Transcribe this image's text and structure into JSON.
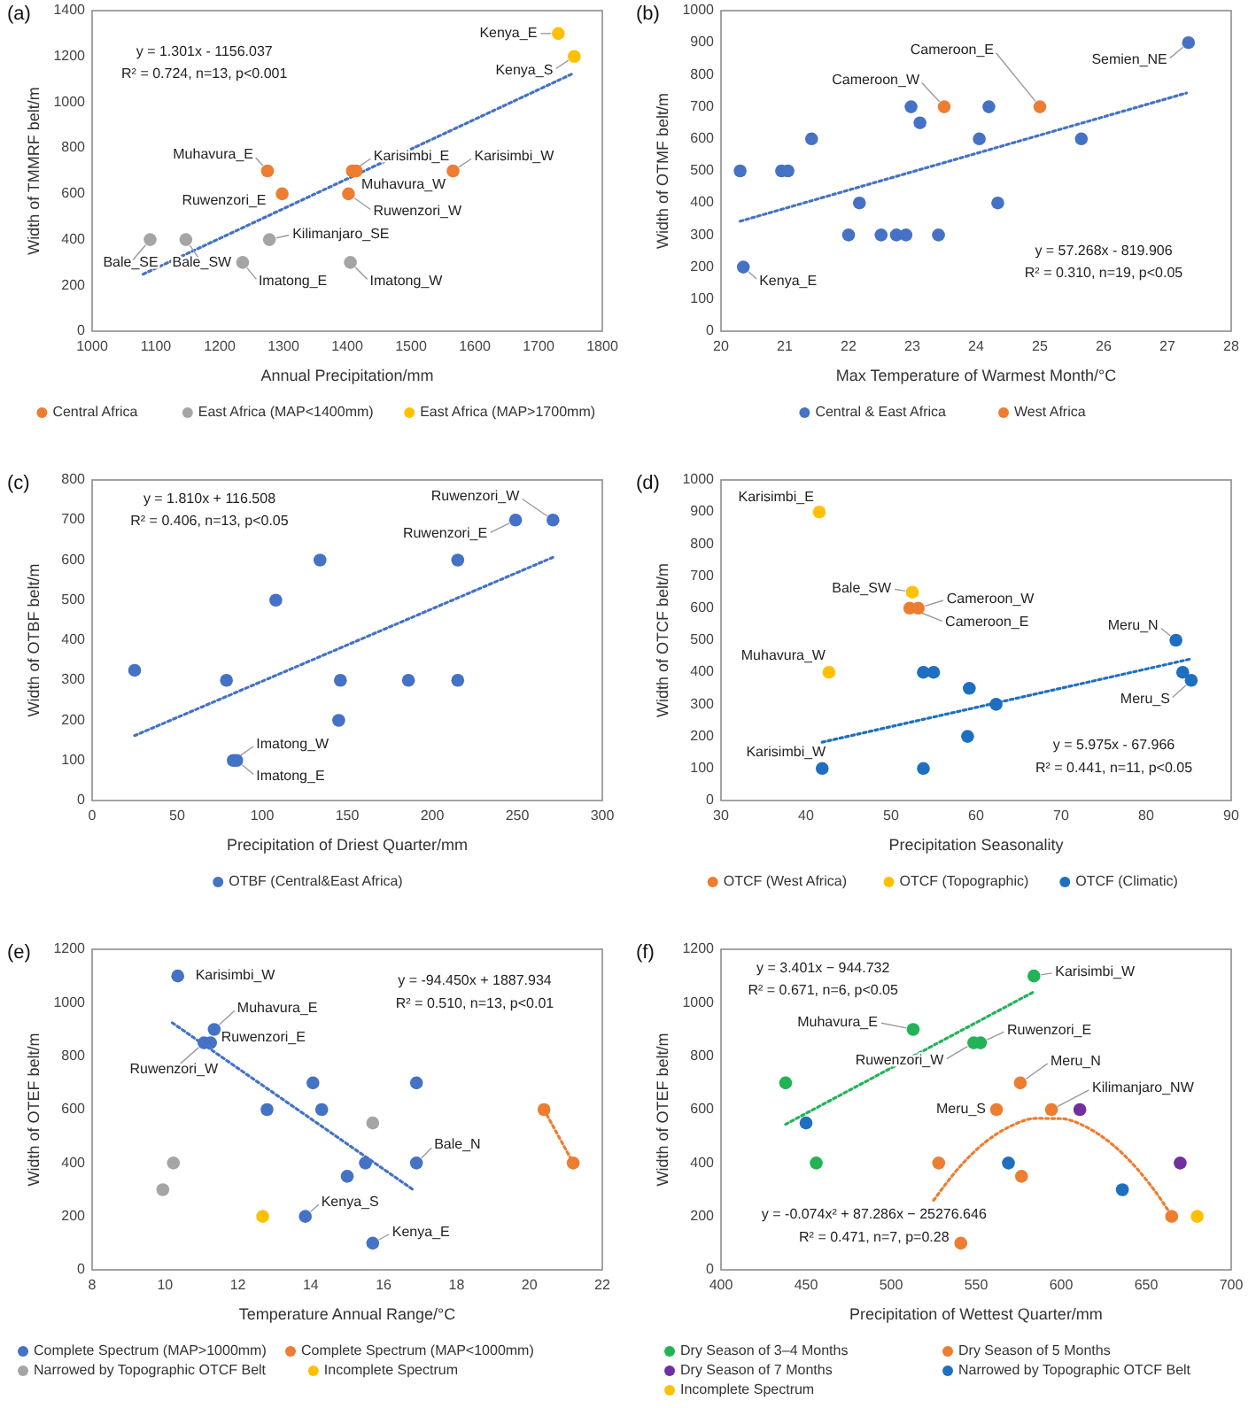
{
  "chart_data": [
    {
      "type": "scatter",
      "title": "(a)",
      "xlabel": "Annual Precipitation/mm",
      "ylabel": "Width of TMMRF belt/m",
      "xlim": [
        1000,
        1800
      ],
      "xticks": [
        1000,
        1100,
        1200,
        1300,
        1400,
        1500,
        1600,
        1700,
        1800
      ],
      "ylim": [
        0,
        1400
      ],
      "yticks": [
        0,
        200,
        400,
        600,
        800,
        1000,
        1200,
        1400
      ],
      "legend": "bottom",
      "marker": "circle",
      "series": [
        {
          "name": "Central Africa",
          "color": "#ed7d31",
          "x": [
            1275,
            1298,
            1408,
            1414,
            1402,
            1566
          ],
          "values": [
            700,
            600,
            700,
            700,
            600,
            700
          ]
        },
        {
          "name": "East Africa (MAP<1400mm)",
          "color": "#a5a5a5",
          "x": [
            1091,
            1147,
            1278,
            1236,
            1405
          ],
          "values": [
            400,
            400,
            400,
            300,
            300
          ]
        },
        {
          "name": "East Africa (MAP>1700mm)",
          "color": "#ffc000",
          "x": [
            1731,
            1756
          ],
          "values": [
            1300,
            1200
          ]
        },
        {
          "type": "line",
          "color": "#4472c4",
          "line_style": "dotted",
          "marker": "none",
          "x": [
            1080,
            1756
          ],
          "values": [
            249,
            1128
          ]
        }
      ],
      "annotations": [
        "y = 1.301x - 1156.037",
        "R² = 0.724, n=13, p<0.001",
        {
          "text": "Kenya_E",
          "x": 1731,
          "y": 1300
        },
        {
          "text": "Kenya_S",
          "x": 1756,
          "y": 1200
        },
        {
          "text": "Muhavura_E",
          "x": 1275,
          "y": 700
        },
        {
          "text": "Ruwenzori_E",
          "x": 1298,
          "y": 600
        },
        {
          "text": "Karisimbi_E",
          "x": 1408,
          "y": 700
        },
        {
          "text": "Muhavura_W",
          "x": 1414,
          "y": 700
        },
        {
          "text": "Ruwenzori_W",
          "x": 1402,
          "y": 600
        },
        {
          "text": "Karisimbi_W",
          "x": 1566,
          "y": 700
        },
        {
          "text": "Kilimanjaro_SE",
          "x": 1278,
          "y": 400
        },
        {
          "text": "Bale_SE",
          "x": 1091,
          "y": 400
        },
        {
          "text": "Bale_SW",
          "x": 1147,
          "y": 400
        },
        {
          "text": "Imatong_E",
          "x": 1236,
          "y": 300
        },
        {
          "text": "Imatong_W",
          "x": 1405,
          "y": 300
        }
      ]
    },
    {
      "type": "scatter",
      "title": "(b)",
      "xlabel": "Max Temperature of Warmest Month/°C",
      "ylabel": "Width of OTMF belt/m",
      "xlim": [
        20,
        28
      ],
      "xticks": [
        20,
        21,
        22,
        23,
        24,
        25,
        26,
        27,
        28
      ],
      "ylim": [
        0,
        1000
      ],
      "yticks": [
        0,
        100,
        200,
        300,
        400,
        500,
        600,
        700,
        800,
        900,
        1000
      ],
      "legend": "bottom",
      "marker": "circle",
      "series": [
        {
          "name": "Central & East Africa",
          "color": "#4472c4",
          "x": [
            20.3,
            20.35,
            20.95,
            21.05,
            21.42,
            22.0,
            22.17,
            22.51,
            22.75,
            22.9,
            22.98,
            23.12,
            23.41,
            24.05,
            24.2,
            24.34,
            25.65,
            27.33
          ],
          "values": [
            500,
            200,
            500,
            500,
            600,
            300,
            400,
            300,
            300,
            300,
            700,
            650,
            300,
            600,
            700,
            400,
            600,
            900
          ]
        },
        {
          "name": "West Africa",
          "color": "#ed7d31",
          "x": [
            23.5,
            25.0
          ],
          "values": [
            700,
            700
          ]
        },
        {
          "type": "line",
          "color": "#4472c4",
          "line_style": "dotted",
          "marker": "none",
          "x": [
            20.3,
            27.3
          ],
          "values": [
            343,
            743
          ]
        }
      ],
      "annotations": [
        "y = 57.268x - 819.906",
        "R² = 0.310, n=19, p<0.05",
        {
          "text": "Kenya_E",
          "x": 20.35,
          "y": 200
        },
        {
          "text": "Cameroon_W",
          "x": 23.5,
          "y": 700
        },
        {
          "text": "Cameroon_E",
          "x": 25.0,
          "y": 700
        },
        {
          "text": "Semien_NE",
          "x": 27.33,
          "y": 900
        }
      ]
    },
    {
      "type": "scatter",
      "title": "(c)",
      "xlabel": "Precipitation of Driest Quarter/mm",
      "ylabel": "Width of OTBF belt/m",
      "xlim": [
        0,
        300
      ],
      "xticks": [
        0,
        50,
        100,
        150,
        200,
        250,
        300
      ],
      "ylim": [
        0,
        800
      ],
      "yticks": [
        0,
        100,
        200,
        300,
        400,
        500,
        600,
        700,
        800
      ],
      "legend": "bottom",
      "marker": "circle",
      "series": [
        {
          "name": "OTBF (Central&East Africa)",
          "color": "#4472c4",
          "x": [
            25,
            79,
            83,
            85,
            108,
            134,
            145,
            146,
            186,
            215,
            215,
            249,
            271
          ],
          "values": [
            325,
            300,
            100,
            100,
            500,
            600,
            200,
            300,
            300,
            300,
            600,
            700,
            700
          ]
        },
        {
          "type": "line",
          "color": "#4472c4",
          "line_style": "dotted",
          "marker": "none",
          "x": [
            25,
            271
          ],
          "values": [
            162,
            607
          ]
        }
      ],
      "annotations": [
        "y = 1.810x + 116.508",
        "R² = 0.406, n=13, p<0.05",
        {
          "text": "Imatong_W",
          "x": 83,
          "y": 100
        },
        {
          "text": "Imatong_E",
          "x": 85,
          "y": 100
        },
        {
          "text": "Ruwenzori_E",
          "x": 249,
          "y": 700
        },
        {
          "text": "Ruwenzori_W",
          "x": 271,
          "y": 700
        }
      ]
    },
    {
      "type": "scatter",
      "title": "(d)",
      "xlabel": "Precipitation Seasonality",
      "ylabel": "Width of OTCF belt/m",
      "xlim": [
        30,
        90
      ],
      "xticks": [
        30,
        40,
        50,
        60,
        70,
        80,
        90
      ],
      "ylim": [
        0,
        1000
      ],
      "yticks": [
        0,
        100,
        200,
        300,
        400,
        500,
        600,
        700,
        800,
        900,
        1000
      ],
      "legend": "bottom",
      "marker": "circle",
      "series": [
        {
          "name": "OTCF (West Africa)",
          "color": "#ed7d31",
          "x": [
            52.2,
            53.2
          ],
          "values": [
            600,
            600
          ]
        },
        {
          "name": "OTCF (Topographic)",
          "color": "#ffc000",
          "x": [
            41.55,
            52.5,
            42.7
          ],
          "values": [
            900,
            650,
            400
          ]
        },
        {
          "name": "OTCF (Climatic)",
          "color": "#1f6fc0",
          "x": [
            41.9,
            53.8,
            55.0,
            53.8,
            59.2,
            59.0,
            62.35,
            83.5,
            84.3,
            85.3
          ],
          "values": [
            100,
            400,
            400,
            100,
            350,
            200,
            300,
            500,
            400,
            375
          ]
        },
        {
          "type": "line",
          "color": "#1f6fc0",
          "line_style": "dotted",
          "marker": "none",
          "x": [
            41.9,
            85.3
          ],
          "values": [
            182,
            442
          ]
        }
      ],
      "annotations": [
        "y = 5.975x - 67.966",
        "R² = 0.441, n=11, p<0.05",
        {
          "text": "Karisimbi_E",
          "x": 41.55,
          "y": 900
        },
        {
          "text": "Bale_SW",
          "x": 52.5,
          "y": 650
        },
        {
          "text": "Cameroon_W",
          "x": 53.2,
          "y": 600
        },
        {
          "text": "Cameroon_E",
          "x": 52.2,
          "y": 600
        },
        {
          "text": "Muhavura_W",
          "x": 42.7,
          "y": 400
        },
        {
          "text": "Karisimbi_W",
          "x": 41.9,
          "y": 100
        },
        {
          "text": "Meru_N",
          "x": 83.5,
          "y": 500
        },
        {
          "text": "Meru_S",
          "x": 85.3,
          "y": 375
        }
      ]
    },
    {
      "type": "scatter",
      "title": "(e)",
      "xlabel": "Temperature Annual Range/°C",
      "ylabel": "Width of OTEF belt/m",
      "xlim": [
        8,
        22
      ],
      "xticks": [
        8,
        10,
        12,
        14,
        16,
        18,
        20,
        22
      ],
      "ylim": [
        0,
        1200
      ],
      "yticks": [
        0,
        200,
        400,
        600,
        800,
        1000,
        1200
      ],
      "legend": "bottom",
      "marker": "circle",
      "series": [
        {
          "name": "Complete Spectrum (MAP>1000mm)",
          "color": "#4472c4",
          "x": [
            10.35,
            11.35,
            11.07,
            11.25,
            12.8,
            14.06,
            14.3,
            15.0,
            15.5,
            16.9,
            16.9,
            13.85,
            15.7
          ],
          "values": [
            1100,
            900,
            850,
            850,
            600,
            700,
            600,
            350,
            400,
            700,
            400,
            200,
            100
          ]
        },
        {
          "name": "Complete Spectrum (MAP<1000mm)",
          "color": "#ed7d31",
          "x": [
            20.4,
            21.2
          ],
          "values": [
            600,
            400
          ]
        },
        {
          "name": "Narrowed by Topographic OTCF Belt",
          "color": "#a5a5a5",
          "x": [
            9.94,
            10.23,
            15.7
          ],
          "values": [
            300,
            400,
            550
          ]
        },
        {
          "name": "Incomplete Spectrum",
          "color": "#ffc000",
          "x": [
            12.68
          ],
          "values": [
            200
          ]
        },
        {
          "type": "line",
          "color": "#4472c4",
          "line_style": "dotted",
          "marker": "none",
          "x": [
            10.2,
            16.8
          ],
          "values": [
            925,
            301
          ]
        },
        {
          "type": "line",
          "color": "#ed7d31",
          "line_style": "dotted",
          "marker": "none",
          "x": [
            20.4,
            21.2
          ],
          "values": [
            600,
            400
          ]
        }
      ],
      "annotations": [
        "y = -94.450x + 1887.934",
        "R² = 0.510, n=13, p<0.01",
        {
          "text": "Karisimbi_W",
          "x": 10.35,
          "y": 1100
        },
        {
          "text": "Muhavura_E",
          "x": 11.35,
          "y": 900
        },
        {
          "text": "Ruwenzori_E",
          "x": 11.25,
          "y": 850
        },
        {
          "text": "Ruwenzori_W",
          "x": 11.07,
          "y": 850
        },
        {
          "text": "Bale_N",
          "x": 16.9,
          "y": 400
        },
        {
          "text": "Kenya_S",
          "x": 13.85,
          "y": 200
        },
        {
          "text": "Kenya_E",
          "x": 15.7,
          "y": 100
        }
      ]
    },
    {
      "type": "scatter",
      "title": "(f)",
      "xlabel": "Precipitation of Wettest Quarter/mm",
      "ylabel": "Width of OTEF belt/m",
      "xlim": [
        400,
        700
      ],
      "xticks": [
        400,
        450,
        500,
        550,
        600,
        650,
        700
      ],
      "ylim": [
        0,
        1200
      ],
      "yticks": [
        0,
        200,
        400,
        600,
        800,
        1000,
        1200
      ],
      "legend": "bottom",
      "marker": "circle",
      "series": [
        {
          "name": "Dry Season of 3–4 Months",
          "color": "#22b357",
          "x": [
            584,
            513,
            548.6,
            552.6,
            438,
            456
          ],
          "values": [
            1100,
            900,
            850,
            850,
            700,
            400
          ]
        },
        {
          "name": "Dry Season of 5 Months",
          "color": "#ed7d31",
          "x": [
            576,
            562,
            594.3,
            528,
            576.7,
            541,
            665
          ],
          "values": [
            700,
            600,
            600,
            400,
            350,
            100,
            200
          ]
        },
        {
          "name": "Dry Season of 7 Months",
          "color": "#7030a0",
          "x": [
            611,
            670
          ],
          "values": [
            600,
            400
          ]
        },
        {
          "name": "Narrowed by Topographic OTCF Belt",
          "color": "#1f6fc0",
          "x": [
            450,
            569,
            636
          ],
          "values": [
            550,
            400,
            300
          ]
        },
        {
          "name": "Incomplete Spectrum",
          "color": "#ffc000",
          "x": [
            680
          ],
          "values": [
            200
          ]
        },
        {
          "type": "line",
          "color": "#22b357",
          "line_style": "dotted",
          "marker": "none",
          "x": [
            438,
            584
          ],
          "values": [
            545,
            1041
          ]
        },
        {
          "type": "line",
          "color": "#ed7d31",
          "line_style": "dotted",
          "marker": "none",
          "x": [
            525,
            540,
            555,
            570,
            585,
            600,
            615,
            630,
            645,
            660,
            665
          ],
          "values": [
            260,
            383,
            476,
            537,
            567,
            566,
            534,
            470,
            376,
            251,
            202
          ]
        }
      ],
      "annotations": [
        "y = 3.401x − 944.732",
        "R² = 0.671, n=6, p<0.05",
        "y = -0.074x² + 87.286x − 25276.646",
        "R² = 0.471, n=7, p=0.28",
        {
          "text": "Karisimbi_W",
          "x": 584,
          "y": 1100
        },
        {
          "text": "Muhavura_E",
          "x": 513,
          "y": 900
        },
        {
          "text": "Ruwenzori_E",
          "x": 552.6,
          "y": 850
        },
        {
          "text": "Ruwenzori_W",
          "x": 548.6,
          "y": 850
        },
        {
          "text": "Meru_N",
          "x": 576,
          "y": 700
        },
        {
          "text": "Meru_S",
          "x": 562,
          "y": 600
        },
        {
          "text": "Kilimanjaro_NW",
          "x": 594.3,
          "y": 600
        }
      ]
    }
  ]
}
